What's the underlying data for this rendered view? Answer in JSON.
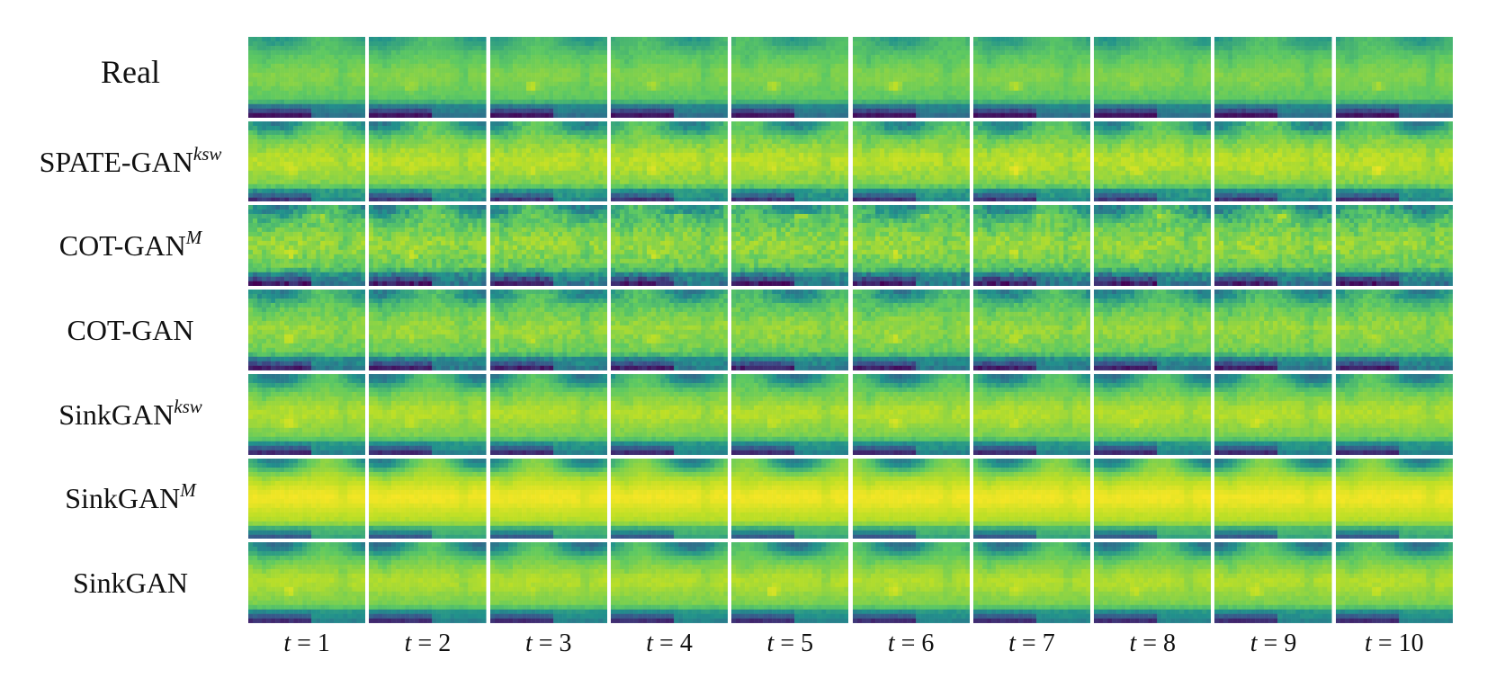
{
  "figure": {
    "rows": [
      {
        "label": "Real",
        "sup": ""
      },
      {
        "label": "SPATE-GAN",
        "sup": "ksw"
      },
      {
        "label": "COT-GAN",
        "sup": "M"
      },
      {
        "label": "COT-GAN",
        "sup": ""
      },
      {
        "label": "SinkGAN",
        "sup": "ksw"
      },
      {
        "label": "SinkGAN",
        "sup": "M"
      },
      {
        "label": "SinkGAN",
        "sup": ""
      }
    ],
    "time_var": "t",
    "time_eq": " = ",
    "time_steps": [
      "1",
      "2",
      "3",
      "4",
      "5",
      "6",
      "7",
      "8",
      "9",
      "10"
    ],
    "colormap": [
      "#440154",
      "#3b528b",
      "#21918c",
      "#5ec962",
      "#bddf26",
      "#fde725"
    ]
  }
}
